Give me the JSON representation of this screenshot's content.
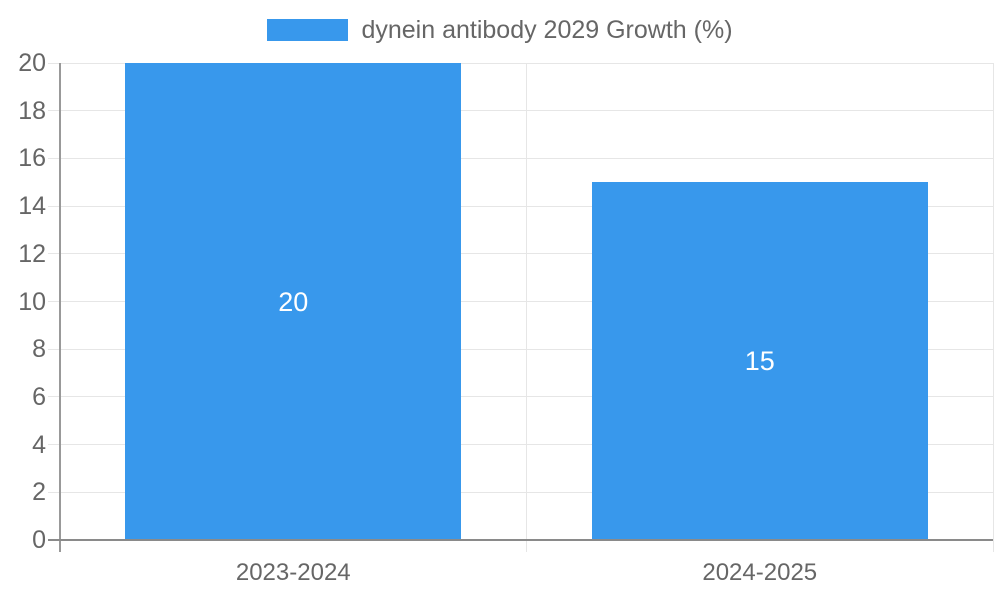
{
  "chart_data": {
    "type": "bar",
    "title": "",
    "series_label": "dynein antibody 2029 Growth (%)",
    "categories": [
      "2023-2024",
      "2024-2025"
    ],
    "values": [
      20,
      15
    ],
    "bar_value_labels": [
      "20",
      "15"
    ],
    "xlabel": "",
    "ylabel": "",
    "ylim": [
      0,
      20
    ],
    "yticks": [
      0,
      2,
      4,
      6,
      8,
      10,
      12,
      14,
      16,
      18,
      20
    ],
    "grid": "horizontal",
    "legend_position": "top-center",
    "colors": {
      "bar": "#3898EC",
      "axis_text": "#666666",
      "gridline": "#E6E6E6",
      "axis_line": "#999999",
      "baseline": "#8A8A8A",
      "bar_label": "#FFFFFF",
      "background": "#FFFFFF"
    }
  }
}
